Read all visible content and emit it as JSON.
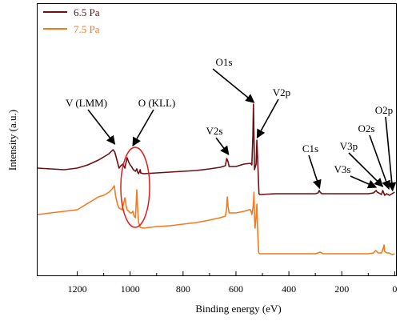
{
  "chart_data": {
    "type": "line",
    "xlabel": "Binding energy (eV)",
    "ylabel": "Intensity (a.u.)",
    "xlim": [
      1350,
      -5
    ],
    "x_reversed": true,
    "x_ticks": [
      1200,
      1000,
      800,
      600,
      400,
      200,
      0
    ],
    "y_ticks_shown": false,
    "grid": false,
    "legend_position": "top-left",
    "series": [
      {
        "name": "6.5 Pa",
        "color": "#6e0f12",
        "points": [
          [
            1350,
            210
          ],
          [
            1300,
            211
          ],
          [
            1250,
            212
          ],
          [
            1200,
            210
          ],
          [
            1160,
            206
          ],
          [
            1120,
            200
          ],
          [
            1100,
            196
          ],
          [
            1080,
            192
          ],
          [
            1065,
            187
          ],
          [
            1058,
            190
          ],
          [
            1050,
            200
          ],
          [
            1042,
            210
          ],
          [
            1035,
            207
          ],
          [
            1028,
            205
          ],
          [
            1020,
            210
          ],
          [
            1012,
            197
          ],
          [
            1005,
            203
          ],
          [
            1000,
            206
          ],
          [
            995,
            208
          ],
          [
            990,
            211
          ],
          [
            985,
            213
          ],
          [
            980,
            214
          ],
          [
            975,
            211
          ],
          [
            972,
            215
          ],
          [
            968,
            217
          ],
          [
            962,
            212
          ],
          [
            960,
            216
          ],
          [
            950,
            217
          ],
          [
            900,
            216
          ],
          [
            850,
            215
          ],
          [
            800,
            214
          ],
          [
            750,
            213
          ],
          [
            700,
            211
          ],
          [
            660,
            209
          ],
          [
            640,
            207
          ],
          [
            635,
            198
          ],
          [
            630,
            202
          ],
          [
            626,
            208
          ],
          [
            600,
            208
          ],
          [
            570,
            205
          ],
          [
            545,
            204
          ],
          [
            540,
            206
          ],
          [
            536,
            170
          ],
          [
            534,
            130
          ],
          [
            532,
            170
          ],
          [
            530,
            212
          ],
          [
            524,
            205
          ],
          [
            521,
            175
          ],
          [
            518,
            200
          ],
          [
            513,
            242
          ],
          [
            510,
            243
          ],
          [
            450,
            242
          ],
          [
            400,
            242
          ],
          [
            350,
            242
          ],
          [
            300,
            242
          ],
          [
            290,
            241
          ],
          [
            285,
            238
          ],
          [
            282,
            240
          ],
          [
            275,
            242
          ],
          [
            200,
            242
          ],
          [
            100,
            242
          ],
          [
            80,
            241
          ],
          [
            70,
            238
          ],
          [
            66,
            240
          ],
          [
            60,
            241
          ],
          [
            50,
            243
          ],
          [
            45,
            238
          ],
          [
            40,
            242
          ],
          [
            38,
            244
          ],
          [
            30,
            242
          ],
          [
            20,
            244
          ],
          [
            10,
            242
          ],
          [
            0,
            240
          ]
        ]
      },
      {
        "name": "7.5 Pa",
        "color": "#f47a1f",
        "points": [
          [
            1350,
            268
          ],
          [
            1300,
            266
          ],
          [
            1250,
            264
          ],
          [
            1200,
            262
          ],
          [
            1180,
            258
          ],
          [
            1150,
            252
          ],
          [
            1120,
            246
          ],
          [
            1100,
            244
          ],
          [
            1080,
            240
          ],
          [
            1068,
            236
          ],
          [
            1060,
            232
          ],
          [
            1055,
            245
          ],
          [
            1048,
            255
          ],
          [
            1042,
            260
          ],
          [
            1030,
            262
          ],
          [
            1020,
            247
          ],
          [
            1015,
            258
          ],
          [
            1012,
            262
          ],
          [
            1005,
            264
          ],
          [
            1000,
            266
          ],
          [
            995,
            266
          ],
          [
            990,
            264
          ],
          [
            985,
            270
          ],
          [
            980,
            272
          ],
          [
            978,
            258
          ],
          [
            975,
            237
          ],
          [
            972,
            260
          ],
          [
            968,
            278
          ],
          [
            962,
            284
          ],
          [
            950,
            285
          ],
          [
            900,
            283
          ],
          [
            850,
            282
          ],
          [
            800,
            280
          ],
          [
            750,
            278
          ],
          [
            700,
            275
          ],
          [
            660,
            272
          ],
          [
            640,
            270
          ],
          [
            636,
            262
          ],
          [
            633,
            246
          ],
          [
            630,
            258
          ],
          [
            626,
            266
          ],
          [
            600,
            266
          ],
          [
            570,
            264
          ],
          [
            550,
            262
          ],
          [
            545,
            262
          ],
          [
            540,
            268
          ],
          [
            535,
            258
          ],
          [
            532,
            240
          ],
          [
            530,
            270
          ],
          [
            528,
            285
          ],
          [
            525,
            275
          ],
          [
            521,
            255
          ],
          [
            518,
            290
          ],
          [
            514,
            316
          ],
          [
            510,
            317
          ],
          [
            450,
            317
          ],
          [
            400,
            317
          ],
          [
            350,
            317
          ],
          [
            300,
            317
          ],
          [
            290,
            316
          ],
          [
            282,
            315
          ],
          [
            270,
            317
          ],
          [
            200,
            317
          ],
          [
            100,
            317
          ],
          [
            80,
            316
          ],
          [
            72,
            313
          ],
          [
            68,
            314
          ],
          [
            62,
            316
          ],
          [
            50,
            316
          ],
          [
            45,
            312
          ],
          [
            40,
            306
          ],
          [
            38,
            314
          ],
          [
            30,
            316
          ],
          [
            20,
            316
          ],
          [
            10,
            318
          ],
          [
            0,
            317
          ]
        ]
      }
    ],
    "annotations": [
      {
        "label": "V (LMM)",
        "arrow_x": 1058,
        "arrow_y": 180
      },
      {
        "label": "O (KLL)",
        "arrow_x": 990,
        "arrow_y": 182
      },
      {
        "label": "O1s",
        "arrow_x": 532,
        "arrow_y": 128
      },
      {
        "label": "V2p",
        "arrow_x": 520,
        "arrow_y": 172
      },
      {
        "label": "V2s",
        "arrow_x": 628,
        "arrow_y": 193
      },
      {
        "label": "C1s",
        "arrow_x": 284,
        "arrow_y": 235
      },
      {
        "label": "V3p",
        "arrow_x": 45,
        "arrow_y": 233
      },
      {
        "label": "V3s",
        "arrow_x": 70,
        "arrow_y": 234
      },
      {
        "label": "O2s",
        "arrow_x": 22,
        "arrow_y": 236
      },
      {
        "label": "O2p",
        "arrow_x": 8,
        "arrow_y": 238
      }
    ]
  }
}
